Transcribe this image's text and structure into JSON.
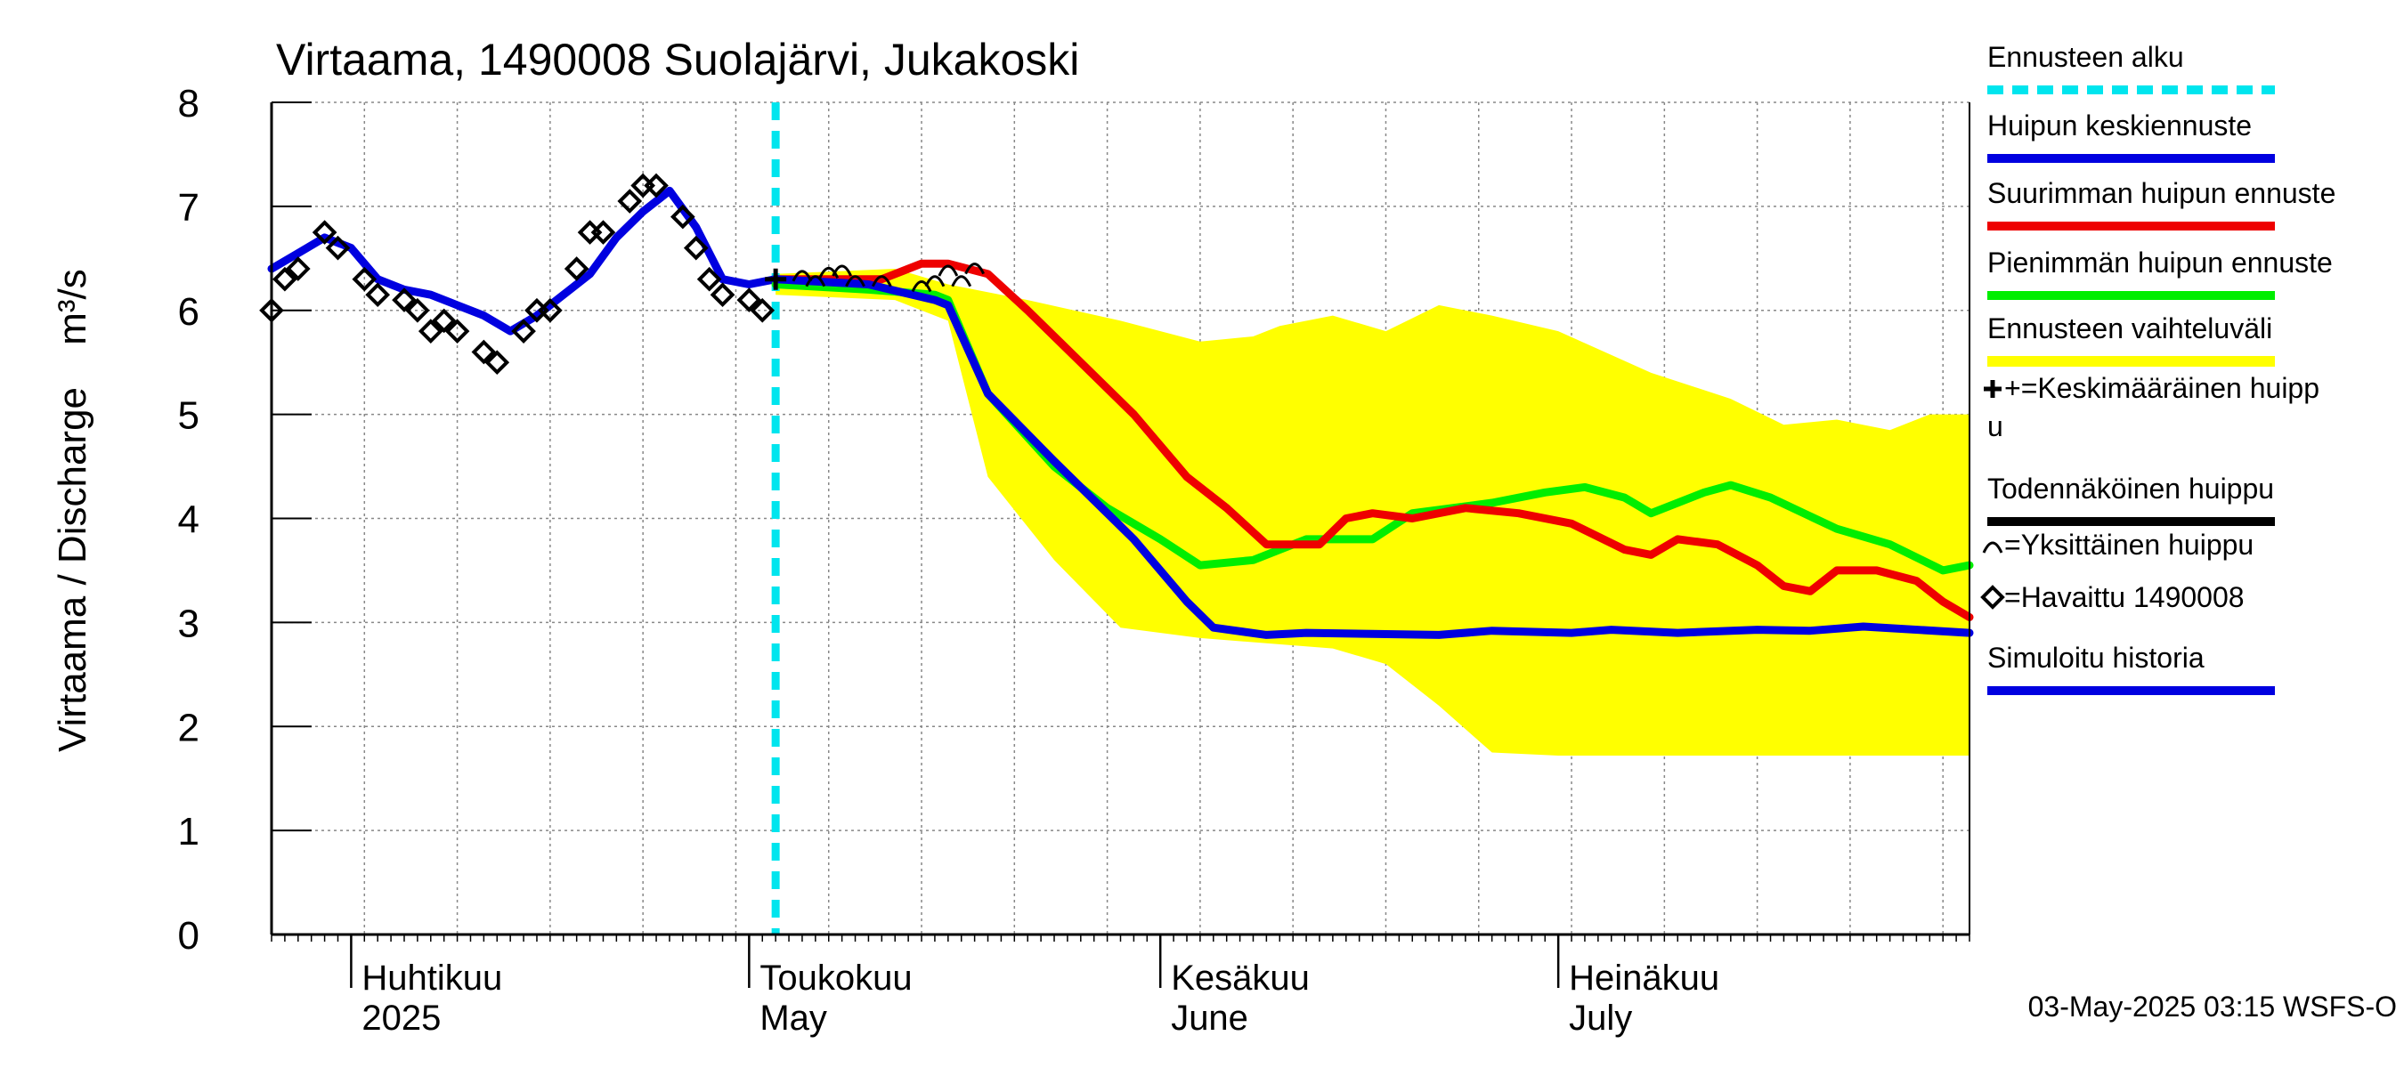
{
  "chart_data": {
    "type": "line",
    "title": "Virtaama, 1490008 Suolajärvi, Jukakoski",
    "ylabel": "Virtaama / Discharge",
    "yunit": "m³/s",
    "ylim": [
      0,
      8
    ],
    "yticks": [
      "0",
      "1",
      "2",
      "3",
      "4",
      "5",
      "6",
      "7",
      "8"
    ],
    "xlim": [
      "2025-03-26",
      "2025-08-01"
    ],
    "x_month_labels": [
      {
        "date": "2025-04-01",
        "fi": "Huhtikuu",
        "en": "2025"
      },
      {
        "date": "2025-05-01",
        "fi": "Toukokuu",
        "en": "May"
      },
      {
        "date": "2025-06-01",
        "fi": "Kesäkuu",
        "en": "June"
      },
      {
        "date": "2025-07-01",
        "fi": "Heinäkuu",
        "en": "July"
      }
    ],
    "grid": true,
    "forecast_start": "2025-05-03",
    "legend": [
      {
        "label": "Ennusteen alku",
        "color": "#00e5ee",
        "style": "dashed"
      },
      {
        "label": "Huipun keskiennuste",
        "color": "#0000e0",
        "style": "line"
      },
      {
        "label": "Suurimman huipun ennuste",
        "color": "#ee0000",
        "style": "line"
      },
      {
        "label": "Pienimmän huipun ennuste",
        "color": "#00ee00",
        "style": "line"
      },
      {
        "label": "Ennusteen vaihteluväli",
        "color": "#ffff00",
        "style": "band"
      },
      {
        "label": "+=Keskimääräinen huipp",
        "label2": "u",
        "color": "#000000",
        "style": "marker"
      },
      {
        "label": "Todennäköinen huippu",
        "color": "#000000",
        "style": "line"
      },
      {
        "label": "=Yksittäinen huippu",
        "color": "#000000",
        "style": "arc-marker"
      },
      {
        "label": "=Havaittu 1490008",
        "color": "#000000",
        "style": "diamond-marker"
      },
      {
        "label": "Simuloitu historia",
        "color": "#0000e0",
        "style": "line"
      }
    ],
    "band_upper": [
      [
        "2025-05-03",
        6.35
      ],
      [
        "2025-05-12",
        6.4
      ],
      [
        "2025-05-16",
        6.25
      ],
      [
        "2025-05-22",
        6.1
      ],
      [
        "2025-05-29",
        5.9
      ],
      [
        "2025-06-04",
        5.7
      ],
      [
        "2025-06-08",
        5.75
      ],
      [
        "2025-06-10",
        5.85
      ],
      [
        "2025-06-14",
        5.95
      ],
      [
        "2025-06-18",
        5.8
      ],
      [
        "2025-06-22",
        6.05
      ],
      [
        "2025-06-26",
        5.95
      ],
      [
        "2025-07-01",
        5.8
      ],
      [
        "2025-07-08",
        5.4
      ],
      [
        "2025-07-14",
        5.15
      ],
      [
        "2025-07-18",
        4.9
      ],
      [
        "2025-07-22",
        4.95
      ],
      [
        "2025-07-26",
        4.85
      ],
      [
        "2025-07-29",
        5.0
      ],
      [
        "2025-08-01",
        5.0
      ]
    ],
    "band_lower": [
      [
        "2025-05-03",
        6.15
      ],
      [
        "2025-05-12",
        6.1
      ],
      [
        "2025-05-16",
        5.9
      ],
      [
        "2025-05-19",
        4.4
      ],
      [
        "2025-05-24",
        3.6
      ],
      [
        "2025-05-29",
        2.95
      ],
      [
        "2025-06-04",
        2.85
      ],
      [
        "2025-06-14",
        2.75
      ],
      [
        "2025-06-18",
        2.6
      ],
      [
        "2025-06-22",
        2.2
      ],
      [
        "2025-06-26",
        1.75
      ],
      [
        "2025-07-01",
        1.72
      ],
      [
        "2025-08-01",
        1.72
      ]
    ],
    "series": [
      {
        "name": "Simuloitu historia",
        "color": "#0000e0",
        "width": 9,
        "points": [
          [
            "2025-03-26",
            6.4
          ],
          [
            "2025-03-28",
            6.55
          ],
          [
            "2025-03-30",
            6.7
          ],
          [
            "2025-04-01",
            6.6
          ],
          [
            "2025-04-03",
            6.3
          ],
          [
            "2025-04-05",
            6.2
          ],
          [
            "2025-04-07",
            6.15
          ],
          [
            "2025-04-09",
            6.05
          ],
          [
            "2025-04-11",
            5.95
          ],
          [
            "2025-04-13",
            5.8
          ],
          [
            "2025-04-15",
            5.95
          ],
          [
            "2025-04-17",
            6.15
          ],
          [
            "2025-04-19",
            6.35
          ],
          [
            "2025-04-21",
            6.7
          ],
          [
            "2025-04-23",
            6.95
          ],
          [
            "2025-04-25",
            7.15
          ],
          [
            "2025-04-27",
            6.8
          ],
          [
            "2025-04-29",
            6.3
          ],
          [
            "2025-05-01",
            6.25
          ],
          [
            "2025-05-03",
            6.3
          ]
        ]
      },
      {
        "name": "Ennusteen vaihteluväli yläraja",
        "color": "#ffff00",
        "width": 3,
        "points": [
          [
            "2025-05-03",
            6.3
          ],
          [
            "2025-05-12",
            6.35
          ]
        ]
      },
      {
        "name": "Pienimmän huipun ennuste",
        "color": "#00ee00",
        "width": 9,
        "points": [
          [
            "2025-05-03",
            6.25
          ],
          [
            "2025-05-10",
            6.2
          ],
          [
            "2025-05-15",
            6.15
          ],
          [
            "2025-05-16",
            6.1
          ],
          [
            "2025-05-19",
            5.2
          ],
          [
            "2025-05-24",
            4.5
          ],
          [
            "2025-05-28",
            4.1
          ],
          [
            "2025-06-01",
            3.8
          ],
          [
            "2025-06-04",
            3.55
          ],
          [
            "2025-06-08",
            3.6
          ],
          [
            "2025-06-10",
            3.7
          ],
          [
            "2025-06-12",
            3.8
          ],
          [
            "2025-06-17",
            3.8
          ],
          [
            "2025-06-20",
            4.05
          ],
          [
            "2025-06-26",
            4.15
          ],
          [
            "2025-06-30",
            4.25
          ],
          [
            "2025-07-03",
            4.3
          ],
          [
            "2025-07-06",
            4.2
          ],
          [
            "2025-07-08",
            4.05
          ],
          [
            "2025-07-12",
            4.25
          ],
          [
            "2025-07-14",
            4.32
          ],
          [
            "2025-07-17",
            4.2
          ],
          [
            "2025-07-22",
            3.9
          ],
          [
            "2025-07-26",
            3.75
          ],
          [
            "2025-07-30",
            3.5
          ],
          [
            "2025-08-01",
            3.55
          ]
        ]
      },
      {
        "name": "Suurimman huipun ennuste",
        "color": "#ee0000",
        "width": 9,
        "points": [
          [
            "2025-05-03",
            6.3
          ],
          [
            "2025-05-11",
            6.3
          ],
          [
            "2025-05-14",
            6.45
          ],
          [
            "2025-05-16",
            6.45
          ],
          [
            "2025-05-19",
            6.35
          ],
          [
            "2025-05-22",
            6.0
          ],
          [
            "2025-05-26",
            5.5
          ],
          [
            "2025-05-30",
            5.0
          ],
          [
            "2025-06-03",
            4.4
          ],
          [
            "2025-06-06",
            4.1
          ],
          [
            "2025-06-09",
            3.75
          ],
          [
            "2025-06-13",
            3.75
          ],
          [
            "2025-06-15",
            4.0
          ],
          [
            "2025-06-17",
            4.05
          ],
          [
            "2025-06-20",
            4.0
          ],
          [
            "2025-06-24",
            4.1
          ],
          [
            "2025-06-28",
            4.05
          ],
          [
            "2025-07-02",
            3.95
          ],
          [
            "2025-07-06",
            3.7
          ],
          [
            "2025-07-08",
            3.65
          ],
          [
            "2025-07-10",
            3.8
          ],
          [
            "2025-07-13",
            3.75
          ],
          [
            "2025-07-16",
            3.55
          ],
          [
            "2025-07-18",
            3.35
          ],
          [
            "2025-07-20",
            3.3
          ],
          [
            "2025-07-22",
            3.5
          ],
          [
            "2025-07-25",
            3.5
          ],
          [
            "2025-07-28",
            3.4
          ],
          [
            "2025-07-30",
            3.2
          ],
          [
            "2025-08-01",
            3.05
          ]
        ]
      },
      {
        "name": "Huipun keskiennuste",
        "color": "#0000e0",
        "width": 9,
        "points": [
          [
            "2025-05-03",
            6.3
          ],
          [
            "2025-05-10",
            6.25
          ],
          [
            "2025-05-15",
            6.1
          ],
          [
            "2025-05-16",
            6.05
          ],
          [
            "2025-05-19",
            5.2
          ],
          [
            "2025-05-24",
            4.55
          ],
          [
            "2025-05-30",
            3.8
          ],
          [
            "2025-06-03",
            3.2
          ],
          [
            "2025-06-05",
            2.95
          ],
          [
            "2025-06-09",
            2.88
          ],
          [
            "2025-06-12",
            2.9
          ],
          [
            "2025-06-22",
            2.88
          ],
          [
            "2025-06-26",
            2.92
          ],
          [
            "2025-07-02",
            2.9
          ],
          [
            "2025-07-05",
            2.93
          ],
          [
            "2025-07-10",
            2.9
          ],
          [
            "2025-07-16",
            2.93
          ],
          [
            "2025-07-20",
            2.92
          ],
          [
            "2025-07-24",
            2.96
          ],
          [
            "2025-08-01",
            2.9
          ]
        ]
      }
    ],
    "observed_diamonds": [
      [
        "2025-03-26",
        6.0
      ],
      [
        "2025-03-27",
        6.3
      ],
      [
        "2025-03-28",
        6.4
      ],
      [
        "2025-03-30",
        6.75
      ],
      [
        "2025-03-31",
        6.6
      ],
      [
        "2025-04-02",
        6.3
      ],
      [
        "2025-04-03",
        6.15
      ],
      [
        "2025-04-05",
        6.1
      ],
      [
        "2025-04-06",
        6.0
      ],
      [
        "2025-04-07",
        5.8
      ],
      [
        "2025-04-08",
        5.9
      ],
      [
        "2025-04-09",
        5.8
      ],
      [
        "2025-04-11",
        5.6
      ],
      [
        "2025-04-12",
        5.5
      ],
      [
        "2025-04-14",
        5.8
      ],
      [
        "2025-04-15",
        6.0
      ],
      [
        "2025-04-16",
        6.0
      ],
      [
        "2025-04-18",
        6.4
      ],
      [
        "2025-04-19",
        6.75
      ],
      [
        "2025-04-20",
        6.75
      ],
      [
        "2025-04-22",
        7.05
      ],
      [
        "2025-04-23",
        7.2
      ],
      [
        "2025-04-24",
        7.2
      ],
      [
        "2025-04-26",
        6.9
      ],
      [
        "2025-04-27",
        6.6
      ],
      [
        "2025-04-28",
        6.3
      ],
      [
        "2025-04-29",
        6.15
      ],
      [
        "2025-05-01",
        6.1
      ],
      [
        "2025-05-02",
        6.0
      ]
    ],
    "mean_peak_plus": [
      [
        "2025-05-03",
        6.3
      ]
    ],
    "single_peak_arcs": [
      [
        "2025-05-05",
        6.35
      ],
      [
        "2025-05-06",
        6.3
      ],
      [
        "2025-05-07",
        6.38
      ],
      [
        "2025-05-08",
        6.4
      ],
      [
        "2025-05-09",
        6.3
      ],
      [
        "2025-05-11",
        6.3
      ],
      [
        "2025-05-14",
        6.25
      ],
      [
        "2025-05-15",
        6.3
      ],
      [
        "2025-05-16",
        6.4
      ],
      [
        "2025-05-17",
        6.3
      ],
      [
        "2025-05-18",
        6.42
      ]
    ],
    "footer": "03-May-2025 03:15 WSFS-O"
  }
}
